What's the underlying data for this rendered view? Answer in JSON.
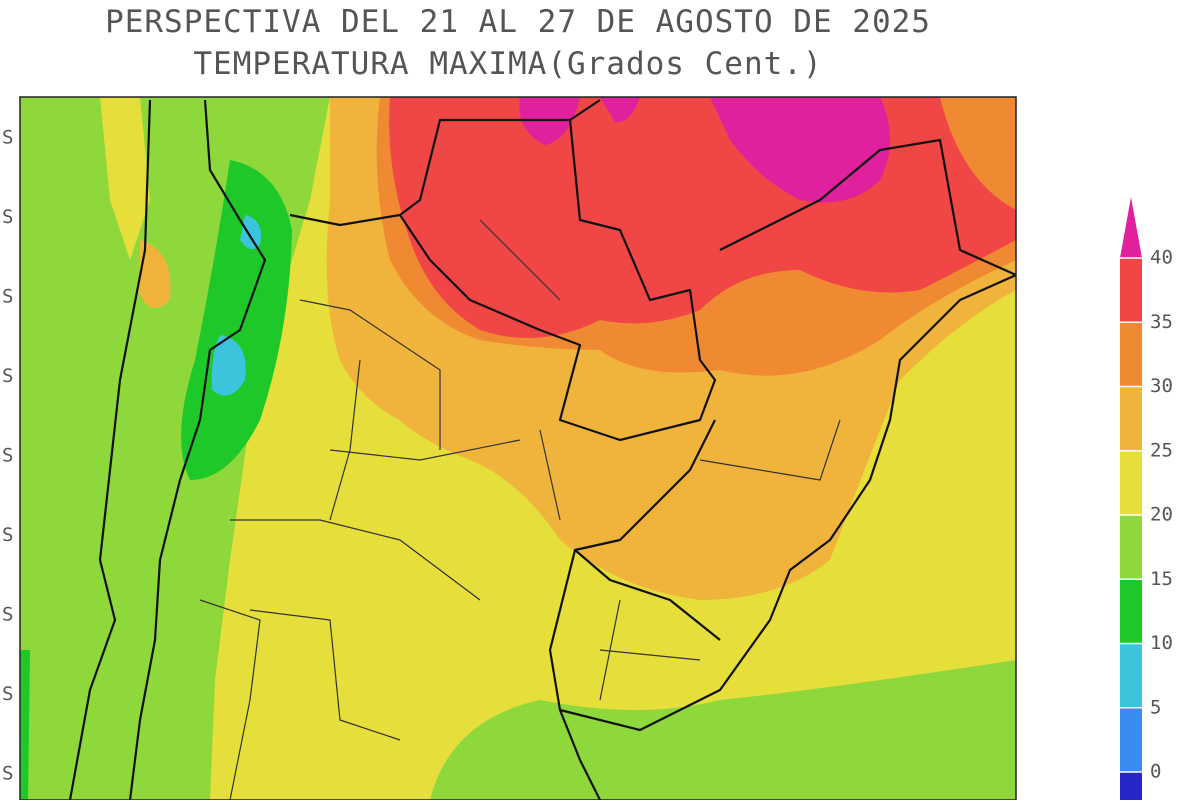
{
  "header": {
    "title_lines": [
      "PERSPECTIVA DEL 21 AL 27 DE AGOSTO DE 2025",
      "TEMPERATURA MAXIMA(Grados Cent.)"
    ]
  },
  "map": {
    "lat_labels": [
      "S",
      "S",
      "S",
      "S",
      "S",
      "S",
      "S",
      "S",
      "S"
    ]
  },
  "colorbar": {
    "ticks": [
      0,
      5,
      10,
      15,
      20,
      25,
      30,
      35,
      40
    ],
    "colors": [
      "#2525c8",
      "#3a8cf0",
      "#3cc4dc",
      "#1ec828",
      "#8ed83c",
      "#e6de3a",
      "#f0b43c",
      "#f08a32",
      "#f04646",
      "#e0209c"
    ]
  }
}
